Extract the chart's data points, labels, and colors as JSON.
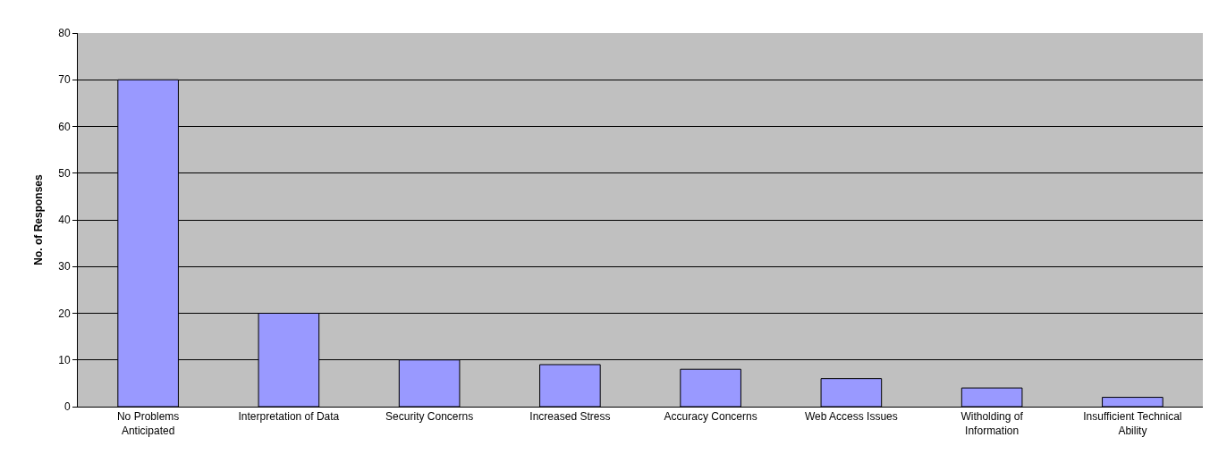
{
  "chart_data": {
    "type": "bar",
    "ylabel": "No. of Responses",
    "categories": [
      "No Problems\nAnticipated",
      "Interpretation of Data",
      "Security Concerns",
      "Increased Stress",
      "Accuracy Concerns",
      "Web Access Issues",
      "Witholding of\nInformation",
      "Insufficient Technical\nAbility"
    ],
    "values": [
      70,
      20,
      10,
      9,
      8,
      6,
      4,
      2
    ],
    "color": "#9999ff",
    "ylim": [
      0,
      80
    ],
    "yticks": [
      0,
      10,
      20,
      30,
      40,
      50,
      60,
      70,
      80
    ],
    "grid": "y"
  }
}
